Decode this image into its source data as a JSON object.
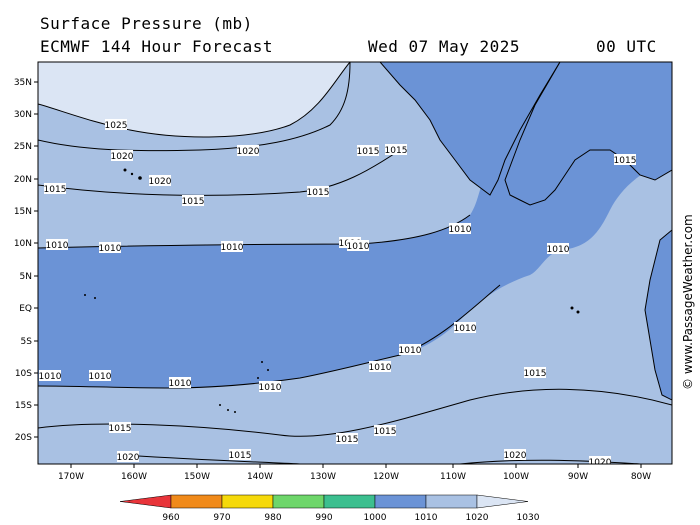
{
  "title": {
    "line1": "Surface Pressure (mb)",
    "line2": "ECMWF 144 Hour Forecast",
    "date": "Wed 07 May 2025",
    "time": "00 UTC"
  },
  "credit": "© www.PassageWeather.com",
  "map": {
    "lat_ticks": [
      "35N",
      "30N",
      "25N",
      "20N",
      "15N",
      "10N",
      "5N",
      "EQ",
      "5S",
      "10S",
      "15S",
      "20S"
    ],
    "lon_ticks": [
      "170W",
      "160W",
      "150W",
      "140W",
      "130W",
      "120W",
      "110W",
      "100W",
      "90W",
      "80W"
    ],
    "isobar_labels": [
      {
        "text": "1025"
      },
      {
        "text": "1020"
      },
      {
        "text": "1020"
      },
      {
        "text": "1020"
      },
      {
        "text": "1015"
      },
      {
        "text": "1015"
      },
      {
        "text": "1015"
      },
      {
        "text": "1015"
      },
      {
        "text": "1015"
      },
      {
        "text": "1010"
      },
      {
        "text": "1010"
      },
      {
        "text": "1010"
      },
      {
        "text": "1010"
      },
      {
        "text": "1010"
      },
      {
        "text": "1010"
      },
      {
        "text": "1010"
      },
      {
        "text": "1010"
      },
      {
        "text": "1010"
      },
      {
        "text": "1010"
      },
      {
        "text": "1010"
      },
      {
        "text": "1010"
      },
      {
        "text": "1010"
      },
      {
        "text": "1010"
      },
      {
        "text": "1015"
      },
      {
        "text": "1015"
      },
      {
        "text": "1015"
      },
      {
        "text": "1015"
      },
      {
        "text": "1020"
      },
      {
        "text": "1020"
      },
      {
        "text": "1020"
      },
      {
        "text": "1015"
      },
      {
        "text": "1015"
      }
    ]
  },
  "legend": {
    "labels": [
      "960",
      "970",
      "980",
      "990",
      "1000",
      "1010",
      "1020",
      "1030"
    ],
    "colors": [
      "#e8343a",
      "#f08a1a",
      "#f5d90a",
      "#6ed66a",
      "#3cbf8f",
      "#6b93d6",
      "#a9c1e3",
      "#dbe5f4"
    ]
  },
  "colors": {
    "band_1010_1020": "#a9c1e3",
    "band_1000_1010": "#6b93d6",
    "band_1020_1030": "#dbe5f4",
    "land": "#6b93d6"
  }
}
